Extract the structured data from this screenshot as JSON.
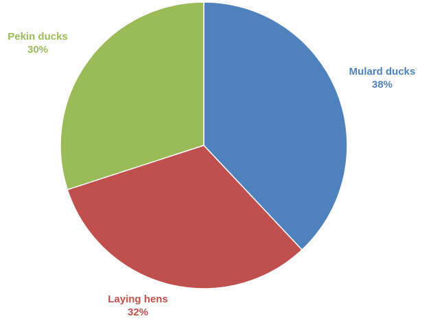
{
  "chart_data": {
    "type": "pie",
    "title": "",
    "slices": [
      {
        "label": "Mulard ducks",
        "value": 38,
        "percent_label": "38%",
        "color": "#4f81bd"
      },
      {
        "label": "Laying hens",
        "value": 32,
        "percent_label": "32%",
        "color": "#c0504d"
      },
      {
        "label": "Pekin ducks",
        "value": 30,
        "percent_label": "30%",
        "color": "#9bbb59"
      }
    ],
    "start_angle": "12 o'clock",
    "direction": "clockwise",
    "legend": "none",
    "data_labels": "outside, category name and percentage, colored like slice"
  }
}
